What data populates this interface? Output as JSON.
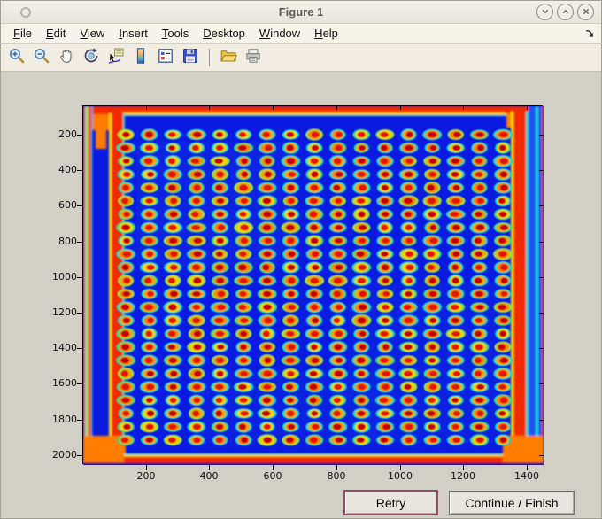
{
  "window": {
    "title": "Figure 1",
    "controls": [
      {
        "name": "shade-button",
        "icon": "chevron-down-icon"
      },
      {
        "name": "unshade-button",
        "icon": "chevron-up-icon"
      },
      {
        "name": "close-button",
        "icon": "close-icon"
      }
    ]
  },
  "menubar": {
    "items": [
      "File",
      "Edit",
      "View",
      "Insert",
      "Tools",
      "Desktop",
      "Window",
      "Help"
    ]
  },
  "toolbar": {
    "buttons": [
      {
        "name": "zoom-in"
      },
      {
        "name": "zoom-out"
      },
      {
        "name": "pan"
      },
      {
        "name": "rotate-3d"
      },
      {
        "name": "data-cursor"
      },
      {
        "name": "insert-colorbar"
      },
      {
        "name": "insert-legend"
      },
      {
        "name": "save"
      },
      {
        "name": "separator"
      },
      {
        "name": "open"
      },
      {
        "name": "print"
      }
    ]
  },
  "buttons": {
    "retry": "Retry",
    "continue": "Continue / Finish"
  },
  "chart_data": {
    "type": "heatmap",
    "title": "",
    "xlabel": "",
    "ylabel": "",
    "x_ticks": [
      200,
      400,
      600,
      800,
      1000,
      1200,
      1400
    ],
    "y_ticks": [
      200,
      400,
      600,
      800,
      1000,
      1200,
      1400,
      1600,
      1800,
      2000
    ],
    "xlim": [
      0,
      1450
    ],
    "ylim": [
      36,
      2051
    ],
    "grid": "off",
    "legend": "none",
    "description": "False-color (jet colormap) scan of a microarray plate: regular grid of red/orange spots with cyan-green halos on a deep blue background, bright red-orange saturated bands along all four plate edges.",
    "spot_grid": {
      "cols": 17,
      "rows": 24,
      "x_start": 134,
      "x_end": 1322,
      "y_start": 195,
      "y_end": 1911
    },
    "palette": {
      "background": "#0a1ae0",
      "background_light": "#1f55ee",
      "halo": [
        "#17d6c9",
        "#2fd98e",
        "#8ae04f"
      ],
      "ring": [
        "#ffd000",
        "#ffa000",
        "#ff8800"
      ],
      "core": [
        "#e01800",
        "#c00500"
      ],
      "edge_red": "#f22b00",
      "edge_orange": "#ff7d00",
      "edge_yellow": "#ffd800",
      "edge_cyan": "#1fd4d4",
      "edge_teal": "#18a0e0",
      "edge_yellowgreen": "#c0e000",
      "dark_line": "#1a0a70"
    }
  }
}
